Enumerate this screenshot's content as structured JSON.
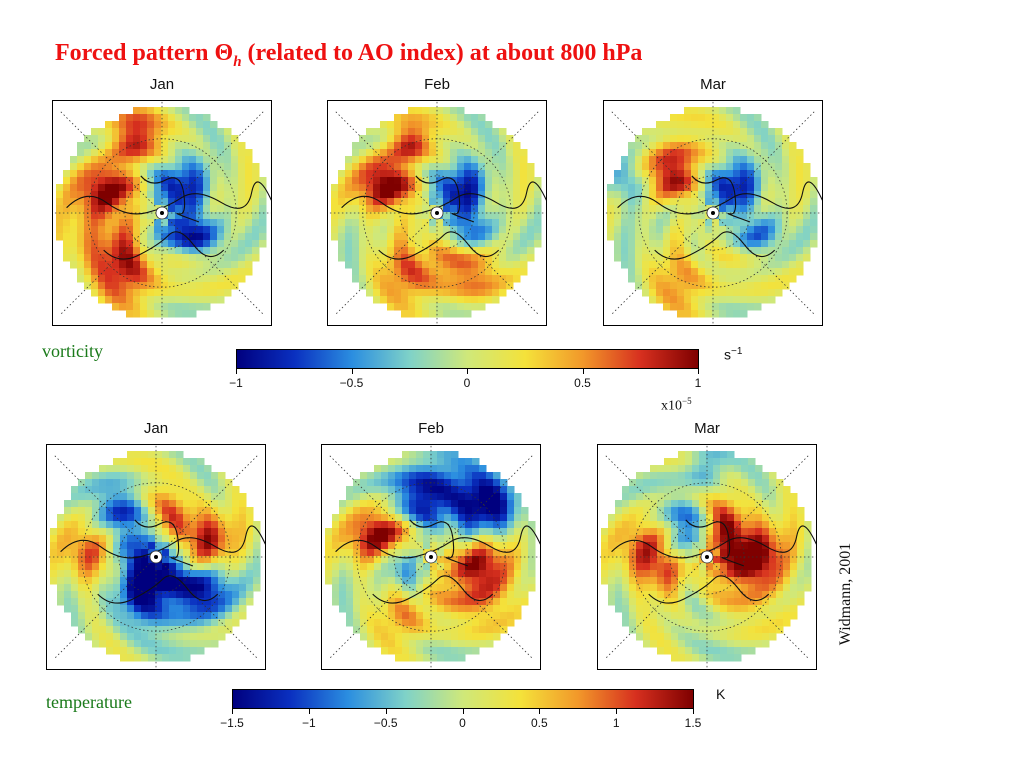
{
  "title": {
    "main": "Forced pattern",
    "theta": "Θ",
    "sub": "h",
    "rest": "(related to AO index) at about 800 hPa"
  },
  "chart_data": [
    {
      "type": "heatmap",
      "variable": "vorticity",
      "panels": [
        "Jan",
        "Feb",
        "Mar"
      ],
      "colorbar": {
        "min": -1,
        "max": 1,
        "ticks": [
          -1,
          -0.5,
          0,
          0.5,
          1
        ],
        "tick_labels": [
          "−1",
          "−0.5",
          "0",
          "0.5",
          "1"
        ],
        "unit": "s",
        "unit_exp": "−1",
        "scale": "x10",
        "scale_exp": "−5"
      },
      "colors": [
        "#00007f",
        "#0a30c0",
        "#2b8ee0",
        "#7fd2c8",
        "#cfe87a",
        "#f4e23a",
        "#f2982a",
        "#d7301f",
        "#7f0000"
      ]
    },
    {
      "type": "heatmap",
      "variable": "temperature",
      "panels": [
        "Jan",
        "Feb",
        "Mar"
      ],
      "colorbar": {
        "min": -1.5,
        "max": 1.5,
        "ticks": [
          -1.5,
          -1,
          -0.5,
          0,
          0.5,
          1,
          1.5
        ],
        "tick_labels": [
          "−1.5",
          "−1",
          "−0.5",
          "0",
          "0.5",
          "1",
          "1.5"
        ],
        "unit": "K"
      },
      "colors": [
        "#00007f",
        "#0a30c0",
        "#2b8ee0",
        "#7fd2c8",
        "#cfe87a",
        "#f4e23a",
        "#f2982a",
        "#d7301f",
        "#7f0000"
      ]
    }
  ],
  "labels": {
    "vorticity": "vorticity",
    "temperature": "temperature"
  },
  "credit": "Widmann, 2001"
}
